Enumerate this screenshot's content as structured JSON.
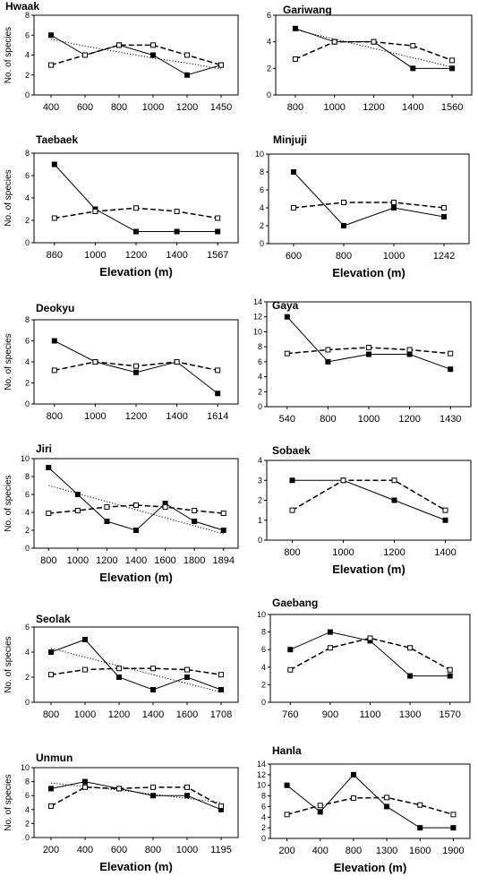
{
  "chart_data": [
    {
      "type": "line",
      "title": "Hwaak",
      "ylabel": "No. of species",
      "xlabel": "",
      "categories": [
        "400",
        "600",
        "800",
        "1000",
        "1200",
        "1450"
      ],
      "ylim": [
        0,
        8
      ],
      "yticks": [
        0,
        2,
        4,
        6,
        8
      ],
      "series": [
        {
          "style": "solid-filled",
          "values": [
            6,
            4,
            5,
            4,
            2,
            3
          ]
        },
        {
          "style": "dashed-open",
          "values": [
            3,
            4,
            5,
            5,
            4,
            3
          ]
        }
      ],
      "trend": [
        5.6,
        4.9,
        4.3,
        3.7,
        3.2,
        2.6
      ]
    },
    {
      "type": "line",
      "title": "Gariwang",
      "ylabel": "",
      "xlabel": "",
      "categories": [
        "800",
        "1000",
        "1200",
        "1400",
        "1560"
      ],
      "ylim": [
        0,
        6
      ],
      "yticks": [
        0,
        2,
        4,
        6
      ],
      "series": [
        {
          "style": "solid-filled",
          "values": [
            5,
            4,
            4,
            2,
            2
          ]
        },
        {
          "style": "dashed-open",
          "values": [
            2.7,
            4,
            4,
            3.7,
            2.6
          ]
        }
      ],
      "trend": [
        4.9,
        4.2,
        3.5,
        2.8,
        2.1
      ]
    },
    {
      "type": "line",
      "title": "Taebaek",
      "ylabel": "No. of species",
      "xlabel": "Elevation (m)",
      "categories": [
        "860",
        "1000",
        "1200",
        "1400",
        "1567"
      ],
      "ylim": [
        0,
        8
      ],
      "yticks": [
        0,
        2,
        4,
        6,
        8
      ],
      "series": [
        {
          "style": "solid-filled",
          "values": [
            7,
            3,
            1,
            1,
            1
          ]
        },
        {
          "style": "dashed-open",
          "values": [
            2.2,
            2.8,
            3.1,
            2.8,
            2.2
          ]
        }
      ],
      "trend": null
    },
    {
      "type": "line",
      "title": "Minjuji",
      "ylabel": "",
      "xlabel": "Elevation (m)",
      "categories": [
        "600",
        "800",
        "1000",
        "1242"
      ],
      "ylim": [
        0,
        10
      ],
      "yticks": [
        0,
        2,
        4,
        6,
        8,
        10
      ],
      "series": [
        {
          "style": "solid-filled",
          "values": [
            8,
            2,
            4,
            3
          ]
        },
        {
          "style": "dashed-open",
          "values": [
            4,
            4.6,
            4.6,
            4
          ]
        }
      ],
      "trend": null
    },
    {
      "type": "line",
      "title": "Deokyu",
      "ylabel": "No. of species",
      "xlabel": "",
      "categories": [
        "800",
        "1000",
        "1200",
        "1400",
        "1614"
      ],
      "ylim": [
        0,
        8
      ],
      "yticks": [
        0,
        2,
        4,
        6,
        8
      ],
      "series": [
        {
          "style": "solid-filled",
          "values": [
            6,
            4,
            3,
            4,
            1
          ]
        },
        {
          "style": "dashed-open",
          "values": [
            3.2,
            4,
            3.6,
            4,
            3.2
          ]
        }
      ],
      "trend": null
    },
    {
      "type": "line",
      "title": "Gaya",
      "ylabel": "",
      "xlabel": "",
      "categories": [
        "540",
        "800",
        "1000",
        "1200",
        "1430"
      ],
      "ylim": [
        0,
        14
      ],
      "yticks": [
        0,
        2,
        4,
        6,
        8,
        10,
        12,
        14
      ],
      "series": [
        {
          "style": "solid-filled",
          "values": [
            12,
            6,
            7,
            7,
            5
          ]
        },
        {
          "style": "dashed-open",
          "values": [
            7.1,
            7.6,
            7.9,
            7.6,
            7.1
          ]
        }
      ],
      "trend": null
    },
    {
      "type": "line",
      "title": "Jiri",
      "ylabel": "No. of species",
      "xlabel": "Elevation (m)",
      "categories": [
        "800",
        "1000",
        "1200",
        "1400",
        "1600",
        "1800",
        "1894"
      ],
      "ylim": [
        0,
        10
      ],
      "yticks": [
        0,
        2,
        4,
        6,
        8,
        10
      ],
      "series": [
        {
          "style": "solid-filled",
          "values": [
            9,
            6,
            3,
            2,
            5,
            3,
            2
          ]
        },
        {
          "style": "dashed-open",
          "values": [
            3.9,
            4.2,
            4.6,
            4.8,
            4.6,
            4.2,
            3.9
          ]
        }
      ],
      "trend": [
        7,
        6.1,
        5.2,
        4.3,
        3.4,
        2.5,
        1.6
      ]
    },
    {
      "type": "line",
      "title": "Sobaek",
      "ylabel": "",
      "xlabel": "Elevation (m)",
      "categories": [
        "800",
        "1000",
        "1200",
        "1400"
      ],
      "ylim": [
        0,
        4
      ],
      "yticks": [
        0,
        1,
        2,
        3,
        4
      ],
      "series": [
        {
          "style": "solid-filled",
          "values": [
            3,
            3,
            2,
            1
          ]
        },
        {
          "style": "dashed-open",
          "values": [
            1.5,
            3,
            3,
            1.5
          ]
        }
      ],
      "trend": null
    },
    {
      "type": "line",
      "title": "Seolak",
      "ylabel": "No. of species",
      "xlabel": "",
      "categories": [
        "800",
        "1000",
        "1200",
        "1400",
        "1600",
        "1708"
      ],
      "ylim": [
        0,
        6
      ],
      "yticks": [
        0,
        2,
        4,
        6
      ],
      "series": [
        {
          "style": "solid-filled",
          "values": [
            4,
            5,
            2,
            1,
            2,
            1
          ]
        },
        {
          "style": "dashed-open",
          "values": [
            2.2,
            2.6,
            2.7,
            2.7,
            2.6,
            2.2
          ]
        }
      ],
      "trend": [
        4.3,
        3.6,
        2.9,
        2.2,
        1.5,
        0.8
      ]
    },
    {
      "type": "line",
      "title": "Gaebang",
      "ylabel": "",
      "xlabel": "",
      "categories": [
        "760",
        "900",
        "1100",
        "1300",
        "1570"
      ],
      "ylim": [
        0,
        10
      ],
      "yticks": [
        0,
        2,
        4,
        6,
        8,
        10
      ],
      "series": [
        {
          "style": "solid-filled",
          "values": [
            6,
            8,
            7,
            3,
            3
          ]
        },
        {
          "style": "dashed-open",
          "values": [
            3.7,
            6.2,
            7.3,
            6.2,
            3.7
          ]
        }
      ],
      "trend": null
    },
    {
      "type": "line",
      "title": "Unmun",
      "ylabel": "No. of species",
      "xlabel": "Elevation (m)",
      "categories": [
        "200",
        "400",
        "600",
        "800",
        "1000",
        "1195"
      ],
      "ylim": [
        0,
        10
      ],
      "yticks": [
        0,
        2,
        4,
        6,
        8,
        10
      ],
      "series": [
        {
          "style": "solid-filled",
          "values": [
            7,
            8,
            7,
            6,
            6,
            4
          ]
        },
        {
          "style": "dashed-open",
          "values": [
            4.5,
            7.2,
            7,
            7.2,
            7.2,
            4.5
          ]
        }
      ],
      "trend": [
        7.8,
        7.3,
        6.8,
        6.2,
        5.6,
        5
      ]
    },
    {
      "type": "line",
      "title": "Hanla",
      "ylabel": "",
      "xlabel": "Elevation (m)",
      "categories": [
        "200",
        "400",
        "800",
        "1300",
        "1600",
        "1900"
      ],
      "ylim": [
        0,
        14
      ],
      "yticks": [
        0,
        2,
        4,
        6,
        8,
        10,
        12,
        14
      ],
      "series": [
        {
          "style": "solid-filled",
          "values": [
            10,
            5,
            12,
            6,
            2,
            2
          ]
        },
        {
          "style": "dashed-open",
          "values": [
            4.5,
            6.2,
            7.6,
            7.7,
            6.3,
            4.5
          ]
        }
      ],
      "trend": null
    }
  ]
}
